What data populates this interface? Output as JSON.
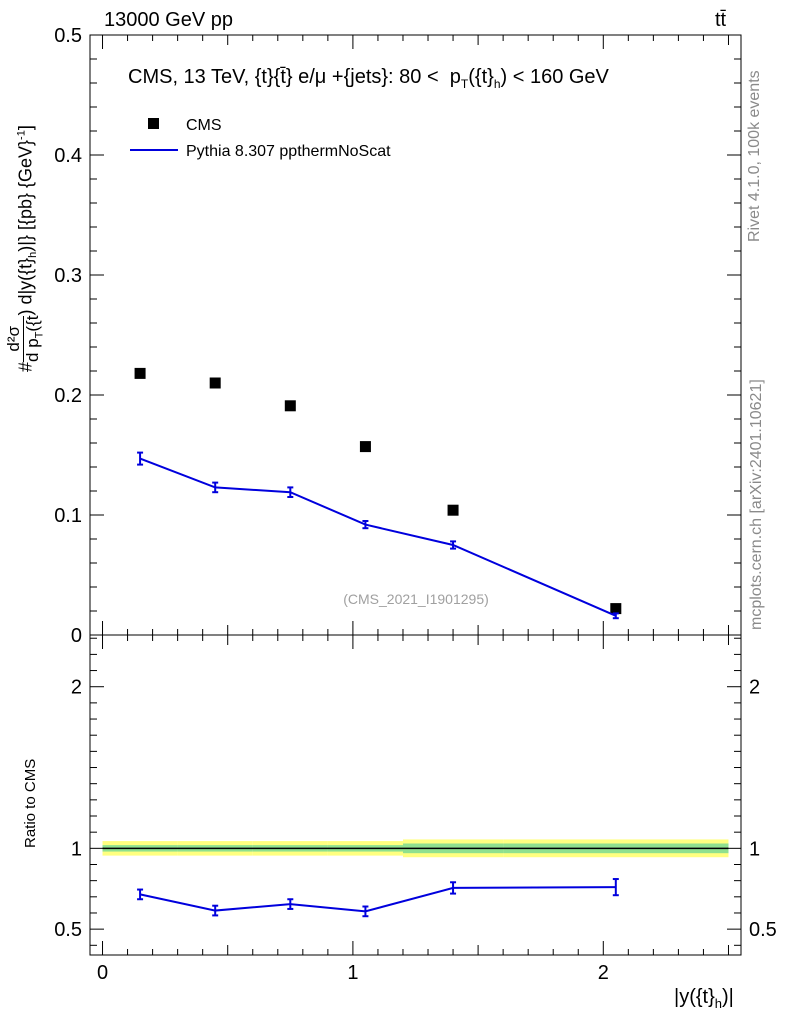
{
  "header": {
    "energy_label": "13000 GeV pp",
    "process_label": "tt̄"
  },
  "side_labels": {
    "rivet": "Rivet 4.1.0,  100k events",
    "mcplots": "mcplots.cern.ch [arXiv:2401.10621]"
  },
  "chart_data": [
    {
      "type": "scatter",
      "panel": "main",
      "title": "CMS, 13 TeV, {t}{t̄} e/μ +{jets}: 80 <  p_T({t}_h) < 160 GeV",
      "ylabel": "#d²σ/dp_T({t}_h) d|y({t}_h)| [{pb} {GeV}⁻¹]",
      "xlabel": "",
      "ylim": [
        0,
        0.5
      ],
      "yticks": [
        "0",
        "0.1",
        "0.2",
        "0.3",
        "0.4",
        "0.5"
      ],
      "watermark": "(CMS_2021_I1901295)",
      "legend_position": "top-left",
      "series": [
        {
          "name": "CMS",
          "style": "markers",
          "color": "#000000",
          "x": [
            0.15,
            0.45,
            0.75,
            1.05,
            1.4,
            2.05
          ],
          "values": [
            0.218,
            0.21,
            0.191,
            0.157,
            0.104,
            0.022
          ]
        },
        {
          "name": "Pythia 8.307 ppthermNoScat",
          "style": "line",
          "color": "#0000dd",
          "x": [
            0.15,
            0.45,
            0.75,
            1.05,
            1.4,
            2.05
          ],
          "values": [
            0.147,
            0.123,
            0.119,
            0.092,
            0.075,
            0.016
          ],
          "errors": [
            0.005,
            0.004,
            0.004,
            0.003,
            0.003,
            0.002
          ]
        }
      ]
    },
    {
      "type": "line",
      "panel": "ratio",
      "ylabel": "Ratio to CMS",
      "xlabel": "|y({t}_h)|",
      "xlim": [
        -0.05,
        2.55
      ],
      "ylim": [
        0.34,
        2.32
      ],
      "xticks": [
        "0",
        "1",
        "2"
      ],
      "yticks": [
        "0.5",
        "1",
        "2"
      ],
      "reference_line": 1.0,
      "bands": [
        {
          "name": "stat+syst",
          "color": "#ffff80",
          "half_width": [
            0.045,
            0.045,
            0.045,
            0.045,
            0.055,
            0.055
          ]
        },
        {
          "name": "stat",
          "color": "#8fe08f",
          "half_width": [
            0.02,
            0.02,
            0.02,
            0.02,
            0.03,
            0.03
          ]
        }
      ],
      "band_edges": [
        0.0,
        0.3,
        0.6,
        0.9,
        1.2,
        1.6,
        2.5
      ],
      "series": [
        {
          "name": "Pythia 8.307 ppthermNoScat / CMS",
          "color": "#0000dd",
          "x": [
            0.15,
            0.45,
            0.75,
            1.05,
            1.4,
            2.05
          ],
          "values": [
            0.715,
            0.615,
            0.655,
            0.61,
            0.755,
            0.76
          ],
          "errors": [
            0.03,
            0.03,
            0.03,
            0.03,
            0.035,
            0.05
          ]
        }
      ]
    }
  ]
}
